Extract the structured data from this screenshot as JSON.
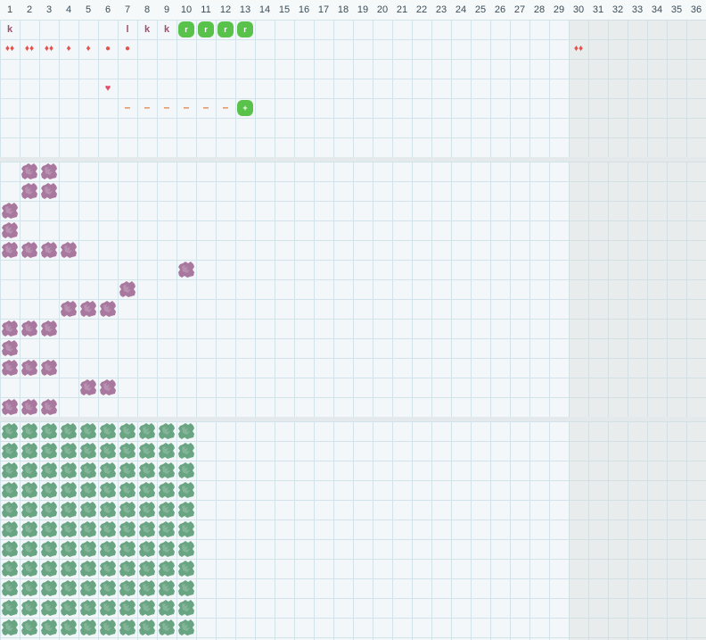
{
  "columns": [
    "1",
    "2",
    "3",
    "4",
    "5",
    "6",
    "7",
    "8",
    "9",
    "10",
    "11",
    "12",
    "13",
    "14",
    "15",
    "16",
    "17",
    "18",
    "19",
    "20",
    "21",
    "22",
    "23",
    "24",
    "25",
    "26",
    "27",
    "28",
    "29",
    "30",
    "31",
    "32",
    "33",
    "34",
    "35",
    "36"
  ],
  "shaded_from_column": 30,
  "colors": {
    "purple_block": "#a9789f",
    "green_block": "#6aa583",
    "bright_green": "#58c24a",
    "marker_red": "#e4544e",
    "letter_purple": "#a0506e",
    "dash_orange": "#e07b3a"
  },
  "top_panel": {
    "markers": [
      {
        "col": 1,
        "row": 0,
        "kind": "letter",
        "text": "k"
      },
      {
        "col": 7,
        "row": 0,
        "kind": "letter",
        "text": "l"
      },
      {
        "col": 8,
        "row": 0,
        "kind": "letter",
        "text": "k"
      },
      {
        "col": 9,
        "row": 0,
        "kind": "letter",
        "text": "k"
      },
      {
        "col": 10,
        "row": 0,
        "kind": "green",
        "text": "r"
      },
      {
        "col": 11,
        "row": 0,
        "kind": "green",
        "text": "r"
      },
      {
        "col": 12,
        "row": 0,
        "kind": "green",
        "text": "r"
      },
      {
        "col": 13,
        "row": 0,
        "kind": "green",
        "text": "r"
      },
      {
        "col": 1,
        "row": 1,
        "kind": "icon",
        "text": "♦♦",
        "icon": "drops-three-icon"
      },
      {
        "col": 2,
        "row": 1,
        "kind": "icon",
        "text": "♦♦",
        "icon": "drops-three-icon"
      },
      {
        "col": 3,
        "row": 1,
        "kind": "icon",
        "text": "♦♦",
        "icon": "drops-two-icon"
      },
      {
        "col": 4,
        "row": 1,
        "kind": "icon",
        "text": "♦",
        "icon": "drop-icon"
      },
      {
        "col": 5,
        "row": 1,
        "kind": "icon",
        "text": "♦",
        "icon": "drop-icon"
      },
      {
        "col": 6,
        "row": 1,
        "kind": "icon",
        "text": "●",
        "icon": "dot-icon"
      },
      {
        "col": 7,
        "row": 1,
        "kind": "icon",
        "text": "●",
        "icon": "dot-icon"
      },
      {
        "col": 30,
        "row": 1,
        "kind": "icon",
        "text": "♦♦",
        "icon": "drops-three-icon"
      },
      {
        "col": 6,
        "row": 3,
        "kind": "heart",
        "text": "♥",
        "icon": "heart-icon"
      },
      {
        "col": 7,
        "row": 4,
        "kind": "dash",
        "text": "–",
        "icon": "dash-icon"
      },
      {
        "col": 8,
        "row": 4,
        "kind": "dash",
        "text": "–",
        "icon": "dash-icon"
      },
      {
        "col": 9,
        "row": 4,
        "kind": "dash",
        "text": "–",
        "icon": "dash-icon"
      },
      {
        "col": 10,
        "row": 4,
        "kind": "dash",
        "text": "–",
        "icon": "dash-icon"
      },
      {
        "col": 11,
        "row": 4,
        "kind": "dash",
        "text": "–",
        "icon": "dash-icon"
      },
      {
        "col": 12,
        "row": 4,
        "kind": "dash",
        "text": "–",
        "icon": "dash-icon"
      },
      {
        "col": 13,
        "row": 4,
        "kind": "green",
        "text": "+"
      }
    ]
  },
  "middle_panel": {
    "rows": [
      [
        2,
        3
      ],
      [
        2,
        3
      ],
      [
        1
      ],
      [
        1
      ],
      [
        1,
        2,
        3,
        4
      ],
      [
        10
      ],
      [
        7
      ],
      [
        4,
        5,
        6
      ],
      [
        1,
        2,
        3
      ],
      [
        1
      ],
      [
        1,
        2,
        3
      ],
      [
        5,
        6
      ],
      [
        1,
        2,
        3
      ]
    ]
  },
  "bottom_panel": {
    "row_count": 11,
    "columns_filled": [
      1,
      2,
      3,
      4,
      5,
      6,
      7,
      8,
      9,
      10
    ]
  }
}
